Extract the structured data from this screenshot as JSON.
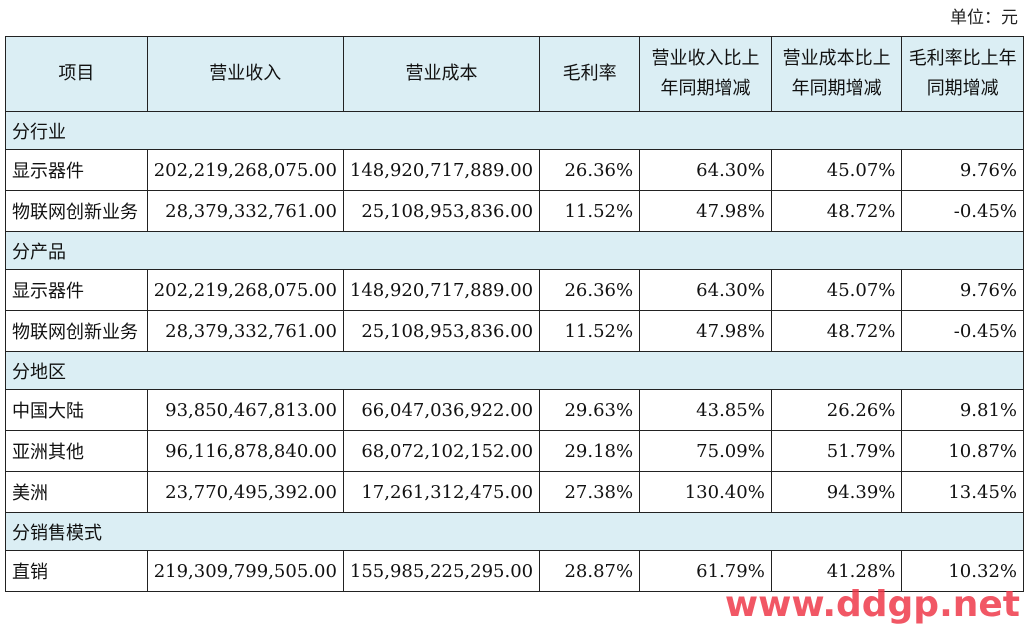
{
  "unit_label": "单位：元",
  "headers": [
    "项目",
    "营业收入",
    "营业成本",
    "毛利率",
    "营业收入比上年同期增减",
    "营业成本比上年同期增减",
    "毛利率比上年同期增减"
  ],
  "sections": [
    {
      "title": "分行业",
      "rows": [
        [
          "显示器件",
          "202,219,268,075.00",
          "148,920,717,889.00",
          "26.36%",
          "64.30%",
          "45.07%",
          "9.76%"
        ],
        [
          "物联网创新业务",
          "28,379,332,761.00",
          "25,108,953,836.00",
          "11.52%",
          "47.98%",
          "48.72%",
          "-0.45%"
        ]
      ]
    },
    {
      "title": "分产品",
      "rows": [
        [
          "显示器件",
          "202,219,268,075.00",
          "148,920,717,889.00",
          "26.36%",
          "64.30%",
          "45.07%",
          "9.76%"
        ],
        [
          "物联网创新业务",
          "28,379,332,761.00",
          "25,108,953,836.00",
          "11.52%",
          "47.98%",
          "48.72%",
          "-0.45%"
        ]
      ]
    },
    {
      "title": "分地区",
      "rows": [
        [
          "中国大陆",
          "93,850,467,813.00",
          "66,047,036,922.00",
          "29.63%",
          "43.85%",
          "26.26%",
          "9.81%"
        ],
        [
          "亚洲其他",
          "96,116,878,840.00",
          "68,072,102,152.00",
          "29.18%",
          "75.09%",
          "51.79%",
          "10.87%"
        ],
        [
          "美洲",
          "23,770,495,392.00",
          "17,261,312,475.00",
          "27.38%",
          "130.40%",
          "94.39%",
          "13.45%"
        ]
      ]
    },
    {
      "title": "分销售模式",
      "rows": [
        [
          "直销",
          "219,309,799,505.00",
          "155,985,225,295.00",
          "28.87%",
          "61.79%",
          "41.28%",
          "10.32%"
        ]
      ]
    }
  ],
  "watermark": "www.ddgp.net"
}
